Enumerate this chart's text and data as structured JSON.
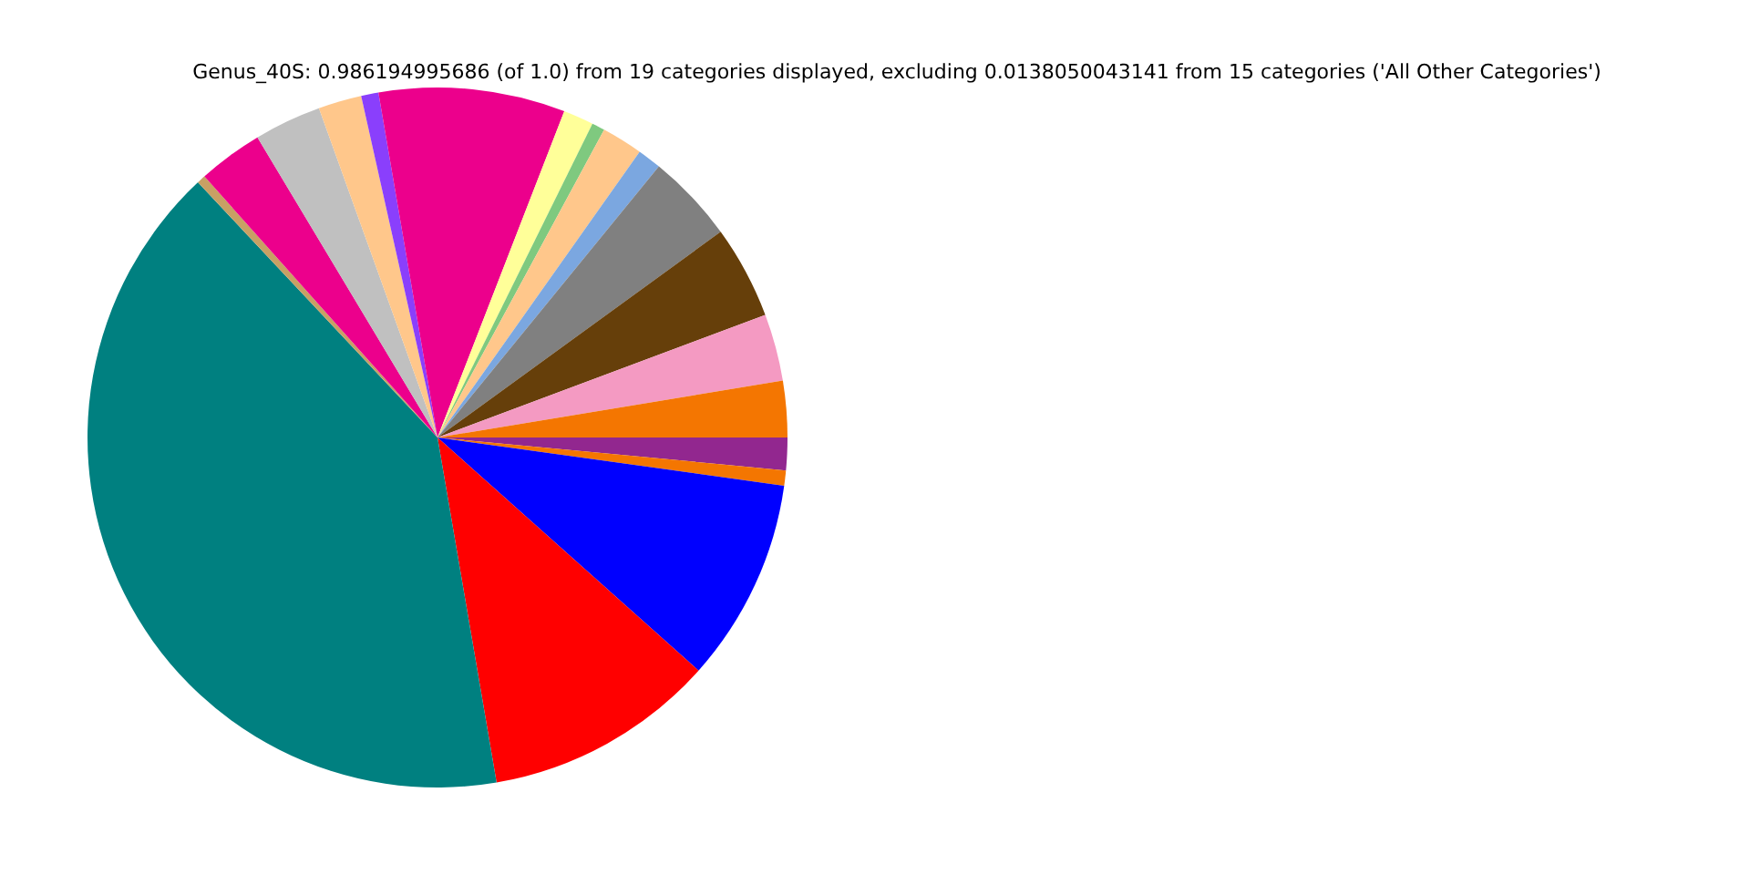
{
  "chart_data": {
    "type": "pie",
    "title": "Genus_40S: 0.986194995686 (of 1.0) from 19 categories displayed, excluding 0.0138050043141 from 15 categories ('All Other Categories')",
    "categories": [
      null,
      null,
      null,
      null,
      null,
      null,
      null,
      null,
      null,
      null,
      null,
      null,
      null,
      null,
      null,
      null,
      null,
      null,
      null
    ],
    "values": [
      1.5,
      0.7,
      9.4,
      10.7,
      40.7,
      0.4,
      3.0,
      3.1,
      2.0,
      0.8,
      8.6,
      1.4,
      0.6,
      1.9,
      1.1,
      4.1,
      4.3,
      3.1,
      2.6
    ],
    "colors": [
      "#92278f",
      "#f47601",
      "#0000ff",
      "#ff0000",
      "#008080",
      "#c8a064",
      "#ec008c",
      "#c0c0c0",
      "#ffc78b",
      "#8a3ffc",
      "#ec008c",
      "#ffff99",
      "#7fc97f",
      "#ffc78b",
      "#7ba7e0",
      "#808080",
      "#663f0a",
      "#f49ac2",
      "#f47601"
    ]
  }
}
